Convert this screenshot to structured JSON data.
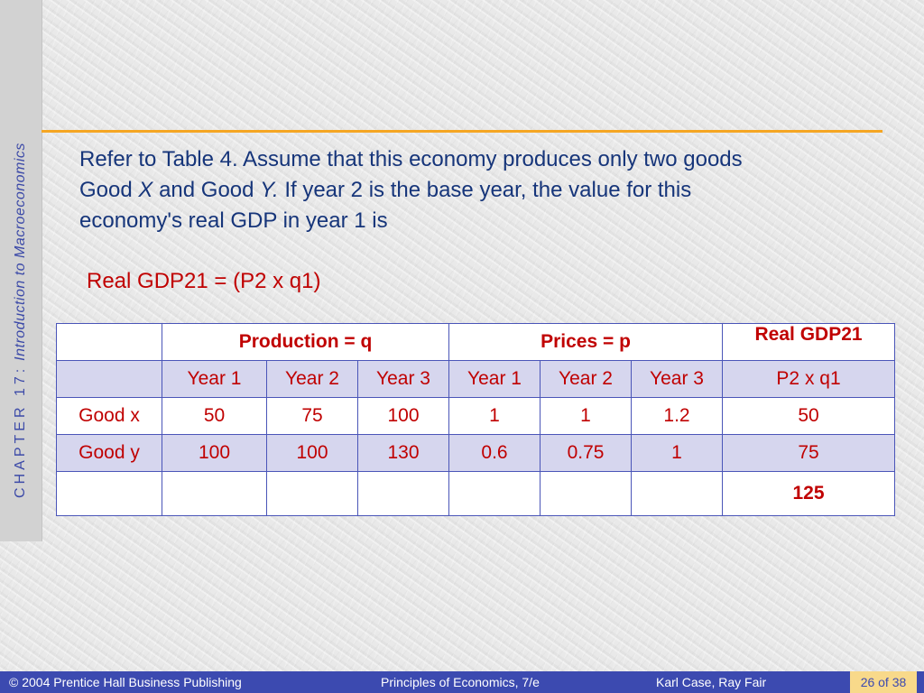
{
  "sidebar": {
    "chapter": "CHAPTER 17:",
    "subject": "Introduction to Macroeconomics"
  },
  "question": {
    "line1": "Refer to Table 4. Assume that this economy produces only two goods",
    "line2_pre": "Good ",
    "line2_x": "X",
    "line2_mid": " and Good ",
    "line2_y": "Y.",
    "line2_post": " If year 2 is the base year, the value for this",
    "line3": "economy's real GDP in year 1 is"
  },
  "formula": "Real GDP21 = (P2 x q1)",
  "table": {
    "group_headers": [
      "Production = q",
      "Prices = p",
      "Real GDP21"
    ],
    "sub_headers": [
      "Year 1",
      "Year 2",
      "Year 3",
      "Year 1",
      "Year 2",
      "Year 3",
      "P2 x q1"
    ],
    "rows": [
      {
        "label": "Good x",
        "values": [
          "50",
          "75",
          "100",
          "1",
          "1",
          "1.2",
          "50"
        ]
      },
      {
        "label": "Good y",
        "values": [
          "100",
          "100",
          "130",
          "0.6",
          "0.75",
          "1",
          "75"
        ]
      }
    ],
    "total": "125"
  },
  "footer": {
    "left": "© 2004 Prentice Hall Business Publishing",
    "center": "Principles of Economics, 7/e",
    "right": "Karl Case, Ray Fair",
    "page": "26 of 38"
  },
  "colors": {
    "accent_rule": "#f5a623",
    "footer_bg": "#3c4ab0",
    "page_box": "#f8d98a",
    "table_text": "#c00000",
    "question_text": "#16357a"
  }
}
